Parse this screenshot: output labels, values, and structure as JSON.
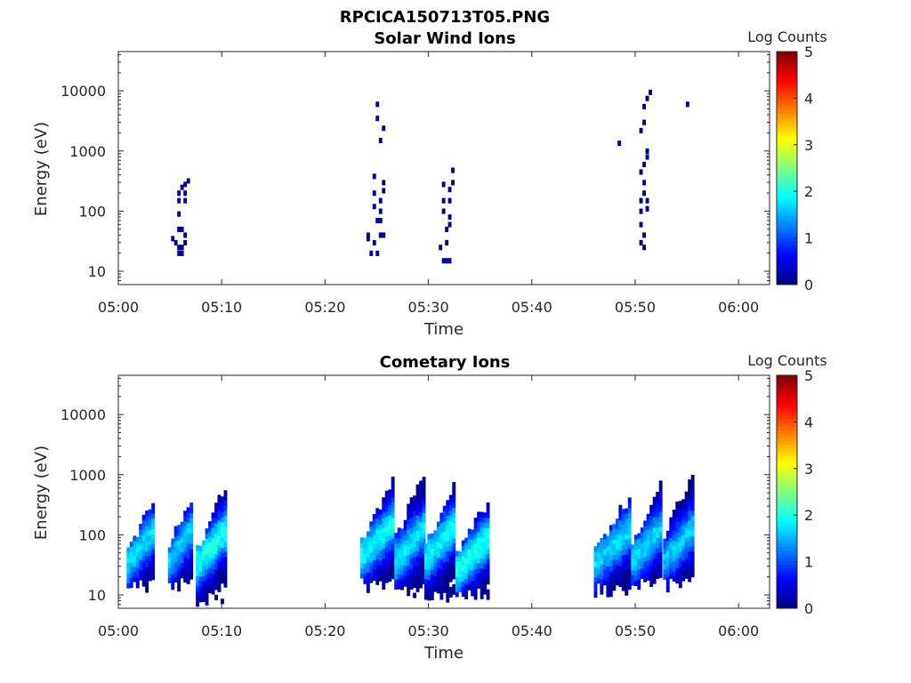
{
  "figure": {
    "title": "RPCICA150713T05.PNG"
  },
  "chart_data": [
    {
      "type": "heatmap",
      "title": "Solar Wind Ions",
      "xlabel": "Time",
      "ylabel": "Energy (eV)",
      "x_range": [
        "05:00",
        "06:03"
      ],
      "y_range": [
        6,
        45000
      ],
      "y_scale": "log",
      "x_ticks": [
        "05:00",
        "05:10",
        "05:20",
        "05:30",
        "05:40",
        "05:50",
        "06:00"
      ],
      "y_ticks": [
        "10",
        "100",
        "1000",
        "10000"
      ],
      "colorbar": {
        "label": "Log Counts",
        "range": [
          0,
          5
        ],
        "ticks": [
          "0",
          "1",
          "2",
          "3",
          "4",
          "5"
        ],
        "colormap": "jet"
      },
      "grid": false,
      "cells": [
        {
          "t": 5.1,
          "e": 35,
          "v": 0.1
        },
        {
          "t": 5.4,
          "e": 30,
          "v": 0.1
        },
        {
          "t": 5.7,
          "e": 25,
          "v": 0.1
        },
        {
          "t": 5.7,
          "e": 20,
          "v": 0.1
        },
        {
          "t": 6.0,
          "e": 25,
          "v": 0.1
        },
        {
          "t": 6.0,
          "e": 20,
          "v": 0.1
        },
        {
          "t": 5.7,
          "e": 50,
          "v": 0.1
        },
        {
          "t": 6.0,
          "e": 50,
          "v": 0.1
        },
        {
          "t": 6.3,
          "e": 40,
          "v": 0.1
        },
        {
          "t": 6.3,
          "e": 30,
          "v": 0.1
        },
        {
          "t": 5.7,
          "e": 90,
          "v": 0.1
        },
        {
          "t": 5.7,
          "e": 150,
          "v": 0.1
        },
        {
          "t": 5.7,
          "e": 200,
          "v": 0.1
        },
        {
          "t": 6.0,
          "e": 250,
          "v": 0.1
        },
        {
          "t": 6.3,
          "e": 200,
          "v": 0.1
        },
        {
          "t": 6.3,
          "e": 150,
          "v": 0.1
        },
        {
          "t": 6.3,
          "e": 280,
          "v": 0.1
        },
        {
          "t": 6.6,
          "e": 320,
          "v": 0.1
        },
        {
          "t": 24.0,
          "e": 40,
          "v": 0.1
        },
        {
          "t": 24.0,
          "e": 35,
          "v": 0.1
        },
        {
          "t": 24.3,
          "e": 20,
          "v": 0.1
        },
        {
          "t": 24.6,
          "e": 30,
          "v": 0.1
        },
        {
          "t": 24.9,
          "e": 20,
          "v": 0.1
        },
        {
          "t": 25.2,
          "e": 40,
          "v": 0.1
        },
        {
          "t": 25.5,
          "e": 40,
          "v": 0.1
        },
        {
          "t": 24.9,
          "e": 70,
          "v": 0.1
        },
        {
          "t": 25.2,
          "e": 70,
          "v": 0.1
        },
        {
          "t": 24.6,
          "e": 120,
          "v": 0.1
        },
        {
          "t": 24.6,
          "e": 200,
          "v": 0.1
        },
        {
          "t": 24.6,
          "e": 380,
          "v": 0.1
        },
        {
          "t": 25.2,
          "e": 100,
          "v": 0.1
        },
        {
          "t": 25.2,
          "e": 150,
          "v": 0.1
        },
        {
          "t": 25.5,
          "e": 220,
          "v": 0.1
        },
        {
          "t": 25.5,
          "e": 300,
          "v": 0.1
        },
        {
          "t": 24.9,
          "e": 3500,
          "v": 0.1
        },
        {
          "t": 24.9,
          "e": 6000,
          "v": 0.1
        },
        {
          "t": 25.2,
          "e": 1500,
          "v": 0.1
        },
        {
          "t": 25.5,
          "e": 2400,
          "v": 0.1
        },
        {
          "t": 31.0,
          "e": 25,
          "v": 0.1
        },
        {
          "t": 31.3,
          "e": 15,
          "v": 0.1
        },
        {
          "t": 31.6,
          "e": 15,
          "v": 0.1
        },
        {
          "t": 31.9,
          "e": 15,
          "v": 0.1
        },
        {
          "t": 31.6,
          "e": 30,
          "v": 0.1
        },
        {
          "t": 31.6,
          "e": 50,
          "v": 0.1
        },
        {
          "t": 31.9,
          "e": 60,
          "v": 0.1
        },
        {
          "t": 31.9,
          "e": 80,
          "v": 0.1
        },
        {
          "t": 31.3,
          "e": 100,
          "v": 0.1
        },
        {
          "t": 31.3,
          "e": 150,
          "v": 0.1
        },
        {
          "t": 31.3,
          "e": 280,
          "v": 0.1
        },
        {
          "t": 31.9,
          "e": 150,
          "v": 0.1
        },
        {
          "t": 31.9,
          "e": 230,
          "v": 0.1
        },
        {
          "t": 32.2,
          "e": 300,
          "v": 0.1
        },
        {
          "t": 32.2,
          "e": 480,
          "v": 0.1
        },
        {
          "t": 48.3,
          "e": 1350,
          "v": 0.1
        },
        {
          "t": 50.4,
          "e": 30,
          "v": 0.1
        },
        {
          "t": 50.7,
          "e": 25,
          "v": 0.1
        },
        {
          "t": 50.4,
          "e": 60,
          "v": 0.1
        },
        {
          "t": 50.4,
          "e": 100,
          "v": 0.1
        },
        {
          "t": 50.4,
          "e": 150,
          "v": 0.1
        },
        {
          "t": 50.7,
          "e": 200,
          "v": 0.1
        },
        {
          "t": 50.7,
          "e": 300,
          "v": 0.1
        },
        {
          "t": 50.4,
          "e": 450,
          "v": 0.1
        },
        {
          "t": 50.7,
          "e": 600,
          "v": 0.1
        },
        {
          "t": 51.0,
          "e": 800,
          "v": 0.1
        },
        {
          "t": 51.0,
          "e": 1000,
          "v": 0.1
        },
        {
          "t": 50.4,
          "e": 2200,
          "v": 0.1
        },
        {
          "t": 50.7,
          "e": 3000,
          "v": 0.1
        },
        {
          "t": 50.7,
          "e": 5500,
          "v": 0.1
        },
        {
          "t": 51.0,
          "e": 7500,
          "v": 0.1
        },
        {
          "t": 51.3,
          "e": 9500,
          "v": 0.1
        },
        {
          "t": 51.0,
          "e": 150,
          "v": 0.1
        },
        {
          "t": 51.0,
          "e": 110,
          "v": 0.1
        },
        {
          "t": 50.7,
          "e": 40,
          "v": 0.1
        },
        {
          "t": 54.9,
          "e": 6000,
          "v": 0.1
        }
      ]
    },
    {
      "type": "heatmap",
      "title": "Cometary Ions",
      "xlabel": "Time",
      "ylabel": "Energy (eV)",
      "x_range": [
        "05:00",
        "06:03"
      ],
      "y_range": [
        6,
        45000
      ],
      "y_scale": "log",
      "x_ticks": [
        "05:00",
        "05:10",
        "05:20",
        "05:30",
        "05:40",
        "05:50",
        "06:00"
      ],
      "y_ticks": [
        "10",
        "100",
        "1000",
        "10000"
      ],
      "colorbar": {
        "label": "Log Counts",
        "range": [
          0,
          5
        ],
        "ticks": [
          "0",
          "1",
          "2",
          "3",
          "4",
          "5"
        ],
        "colormap": "jet"
      },
      "grid": false,
      "bursts": [
        {
          "t_start": 0.8,
          "t_end": 3.6,
          "e_low": 12,
          "e_high": 420,
          "e_mid": 55,
          "peak": 1.7
        },
        {
          "t_start": 4.8,
          "t_end": 7.2,
          "e_low": 12,
          "e_high": 520,
          "e_mid": 60,
          "peak": 1.6
        },
        {
          "t_start": 7.5,
          "t_end": 10.4,
          "e_low": 7,
          "e_high": 800,
          "e_mid": 55,
          "peak": 2.0
        },
        {
          "t_start": 23.4,
          "t_end": 26.7,
          "e_low": 12,
          "e_high": 900,
          "e_mid": 70,
          "peak": 1.9
        },
        {
          "t_start": 26.7,
          "t_end": 29.6,
          "e_low": 9,
          "e_high": 1500,
          "e_mid": 60,
          "peak": 1.8
        },
        {
          "t_start": 29.6,
          "t_end": 32.6,
          "e_low": 8,
          "e_high": 800,
          "e_mid": 65,
          "peak": 1.9
        },
        {
          "t_start": 32.6,
          "t_end": 35.8,
          "e_low": 9,
          "e_high": 450,
          "e_mid": 40,
          "peak": 2.0
        },
        {
          "t_start": 46.0,
          "t_end": 49.6,
          "e_low": 10,
          "e_high": 500,
          "e_mid": 55,
          "peak": 1.7
        },
        {
          "t_start": 49.6,
          "t_end": 52.7,
          "e_low": 12,
          "e_high": 800,
          "e_mid": 60,
          "peak": 1.7
        },
        {
          "t_start": 52.7,
          "t_end": 55.8,
          "e_low": 12,
          "e_high": 1300,
          "e_mid": 60,
          "peak": 1.6
        }
      ]
    }
  ]
}
